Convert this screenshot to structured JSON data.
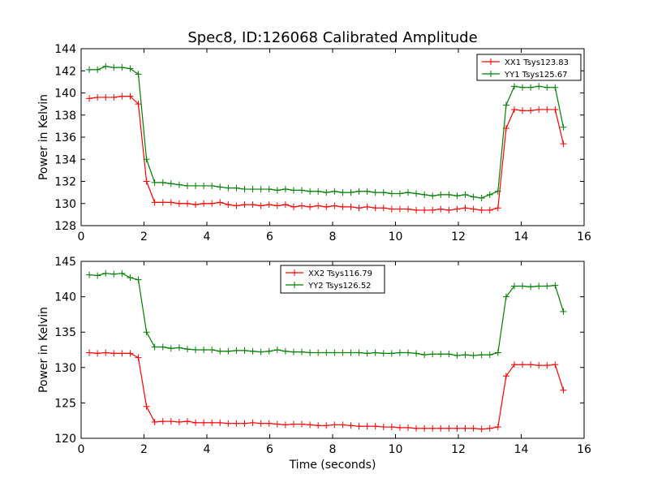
{
  "figure": {
    "title": "Spec8, ID:126068 Calibrated Amplitude"
  },
  "chart_data": [
    {
      "type": "line",
      "title": "Spec8, ID:126068 Calibrated Amplitude",
      "xlabel": "",
      "ylabel": "Power in Kelvin",
      "xlim": [
        0,
        16
      ],
      "ylim": [
        128,
        144
      ],
      "xticks": [
        0,
        2,
        4,
        6,
        8,
        10,
        12,
        14,
        16
      ],
      "yticks": [
        128,
        130,
        132,
        134,
        136,
        138,
        140,
        142,
        144
      ],
      "grid": false,
      "legend_position": "upper right",
      "x": [
        0.26,
        0.52,
        0.78,
        1.04,
        1.3,
        1.56,
        1.82,
        2.08,
        2.34,
        2.6,
        2.86,
        3.12,
        3.38,
        3.64,
        3.9,
        4.16,
        4.42,
        4.68,
        4.94,
        5.2,
        5.46,
        5.72,
        5.98,
        6.24,
        6.5,
        6.76,
        7.02,
        7.28,
        7.54,
        7.8,
        8.06,
        8.32,
        8.58,
        8.84,
        9.1,
        9.36,
        9.62,
        9.88,
        10.14,
        10.4,
        10.66,
        10.92,
        11.18,
        11.44,
        11.7,
        11.96,
        12.22,
        12.48,
        12.74,
        13.0,
        13.26,
        13.52,
        13.78,
        14.04,
        14.3,
        14.56,
        14.82,
        15.08,
        15.34
      ],
      "series": [
        {
          "name": "XX1 Tsys123.83",
          "color": "#ff0000",
          "values": [
            139.5,
            139.6,
            139.6,
            139.6,
            139.7,
            139.7,
            139.0,
            132.0,
            130.1,
            130.1,
            130.1,
            130.0,
            130.0,
            129.9,
            130.0,
            130.0,
            130.1,
            129.9,
            129.8,
            129.9,
            129.9,
            129.8,
            129.9,
            129.8,
            129.9,
            129.7,
            129.8,
            129.7,
            129.8,
            129.7,
            129.8,
            129.7,
            129.7,
            129.6,
            129.7,
            129.6,
            129.6,
            129.5,
            129.5,
            129.5,
            129.4,
            129.4,
            129.4,
            129.5,
            129.4,
            129.5,
            129.6,
            129.5,
            129.4,
            129.4,
            129.6,
            136.8,
            138.5,
            138.4,
            138.4,
            138.5,
            138.5,
            138.5,
            135.4
          ]
        },
        {
          "name": "YY1 Tsys125.67",
          "color": "#008000",
          "values": [
            142.1,
            142.1,
            142.4,
            142.3,
            142.3,
            142.2,
            141.7,
            134.0,
            131.9,
            131.9,
            131.8,
            131.7,
            131.6,
            131.6,
            131.6,
            131.6,
            131.5,
            131.4,
            131.4,
            131.3,
            131.3,
            131.3,
            131.3,
            131.2,
            131.3,
            131.2,
            131.2,
            131.1,
            131.1,
            131.0,
            131.1,
            131.0,
            131.0,
            131.1,
            131.1,
            131.0,
            131.0,
            130.9,
            130.9,
            131.0,
            130.9,
            130.8,
            130.7,
            130.8,
            130.8,
            130.7,
            130.8,
            130.6,
            130.5,
            130.8,
            131.1,
            138.9,
            140.6,
            140.5,
            140.5,
            140.6,
            140.5,
            140.5,
            136.9
          ]
        }
      ]
    },
    {
      "type": "line",
      "title": "",
      "xlabel": "Time (seconds)",
      "ylabel": "Power in Kelvin",
      "xlim": [
        0,
        16
      ],
      "ylim": [
        120,
        145
      ],
      "xticks": [
        0,
        2,
        4,
        6,
        8,
        10,
        12,
        14,
        16
      ],
      "yticks": [
        120,
        125,
        130,
        135,
        140,
        145
      ],
      "grid": false,
      "legend_position": "upper center",
      "x": [
        0.26,
        0.52,
        0.78,
        1.04,
        1.3,
        1.56,
        1.82,
        2.08,
        2.34,
        2.6,
        2.86,
        3.12,
        3.38,
        3.64,
        3.9,
        4.16,
        4.42,
        4.68,
        4.94,
        5.2,
        5.46,
        5.72,
        5.98,
        6.24,
        6.5,
        6.76,
        7.02,
        7.28,
        7.54,
        7.8,
        8.06,
        8.32,
        8.58,
        8.84,
        9.1,
        9.36,
        9.62,
        9.88,
        10.14,
        10.4,
        10.66,
        10.92,
        11.18,
        11.44,
        11.7,
        11.96,
        12.22,
        12.48,
        12.74,
        13.0,
        13.26,
        13.52,
        13.78,
        14.04,
        14.3,
        14.56,
        14.82,
        15.08,
        15.34
      ],
      "series": [
        {
          "name": "XX2 Tsys116.79",
          "color": "#ff0000",
          "values": [
            132.1,
            132.0,
            132.1,
            132.0,
            132.0,
            132.0,
            131.4,
            124.5,
            122.3,
            122.4,
            122.4,
            122.3,
            122.4,
            122.2,
            122.2,
            122.2,
            122.2,
            122.1,
            122.1,
            122.1,
            122.2,
            122.1,
            122.1,
            122.0,
            121.9,
            122.0,
            122.0,
            121.9,
            121.8,
            121.8,
            121.9,
            121.9,
            121.8,
            121.7,
            121.7,
            121.7,
            121.6,
            121.6,
            121.5,
            121.5,
            121.4,
            121.4,
            121.4,
            121.4,
            121.4,
            121.4,
            121.4,
            121.4,
            121.3,
            121.4,
            121.6,
            128.8,
            130.4,
            130.4,
            130.4,
            130.3,
            130.3,
            130.4,
            126.8
          ]
        },
        {
          "name": "YY2 Tsys126.52",
          "color": "#008000",
          "values": [
            143.1,
            143.0,
            143.3,
            143.2,
            143.3,
            142.7,
            142.4,
            135.0,
            132.9,
            132.9,
            132.7,
            132.8,
            132.6,
            132.5,
            132.5,
            132.5,
            132.3,
            132.3,
            132.4,
            132.4,
            132.3,
            132.2,
            132.3,
            132.5,
            132.3,
            132.2,
            132.2,
            132.1,
            132.1,
            132.1,
            132.1,
            132.1,
            132.1,
            132.1,
            132.0,
            132.1,
            132.0,
            132.0,
            132.1,
            132.1,
            132.0,
            131.8,
            131.9,
            131.9,
            131.9,
            131.7,
            131.8,
            131.7,
            131.8,
            131.8,
            132.1,
            140.0,
            141.5,
            141.5,
            141.4,
            141.5,
            141.5,
            141.6,
            137.9
          ]
        }
      ]
    }
  ]
}
